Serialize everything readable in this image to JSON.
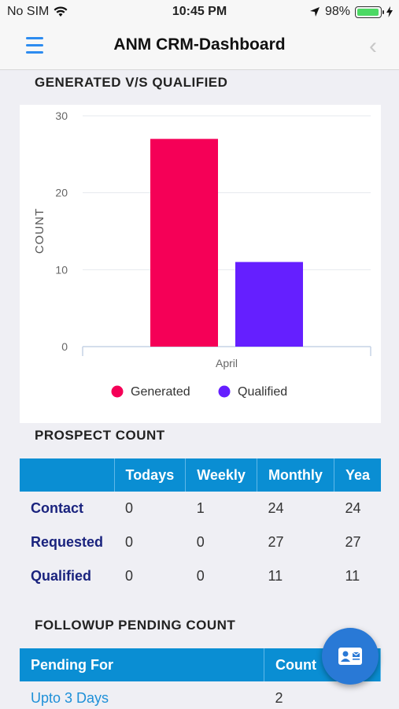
{
  "status": {
    "carrier": "No SIM",
    "time": "10:45 PM",
    "battery": "98%"
  },
  "header": {
    "title": "ANM CRM-Dashboard"
  },
  "chart_section": {
    "title": "GENERATED V/S QUALIFIED"
  },
  "chart_data": {
    "type": "bar",
    "categories": [
      "April"
    ],
    "series": [
      {
        "name": "Generated",
        "values": [
          27
        ],
        "color": "#f50057"
      },
      {
        "name": "Qualified",
        "values": [
          11
        ],
        "color": "#651fff"
      }
    ],
    "ylabel": "COUNT",
    "xlabel": "",
    "ylim": [
      0,
      30
    ],
    "yticks": [
      0,
      10,
      20,
      30
    ],
    "grid": true,
    "legend": "bottom"
  },
  "prospect": {
    "title": "PROSPECT COUNT",
    "headers": [
      "",
      "Todays",
      "Weekly",
      "Monthly",
      "Yea"
    ],
    "rows": [
      {
        "label": "Contact",
        "values": [
          "0",
          "1",
          "24",
          "24"
        ]
      },
      {
        "label": "Requested",
        "values": [
          "0",
          "0",
          "27",
          "27"
        ]
      },
      {
        "label": "Qualified",
        "values": [
          "0",
          "0",
          "11",
          "11"
        ]
      }
    ]
  },
  "followup": {
    "title": "FOLLOWUP PENDING COUNT",
    "headers": [
      "Pending For",
      "Count"
    ],
    "rows": [
      {
        "label": "Upto 3 Days",
        "count": "2"
      }
    ]
  },
  "colors": {
    "accent": "#0a8ed3",
    "brand": "#2979d6"
  }
}
